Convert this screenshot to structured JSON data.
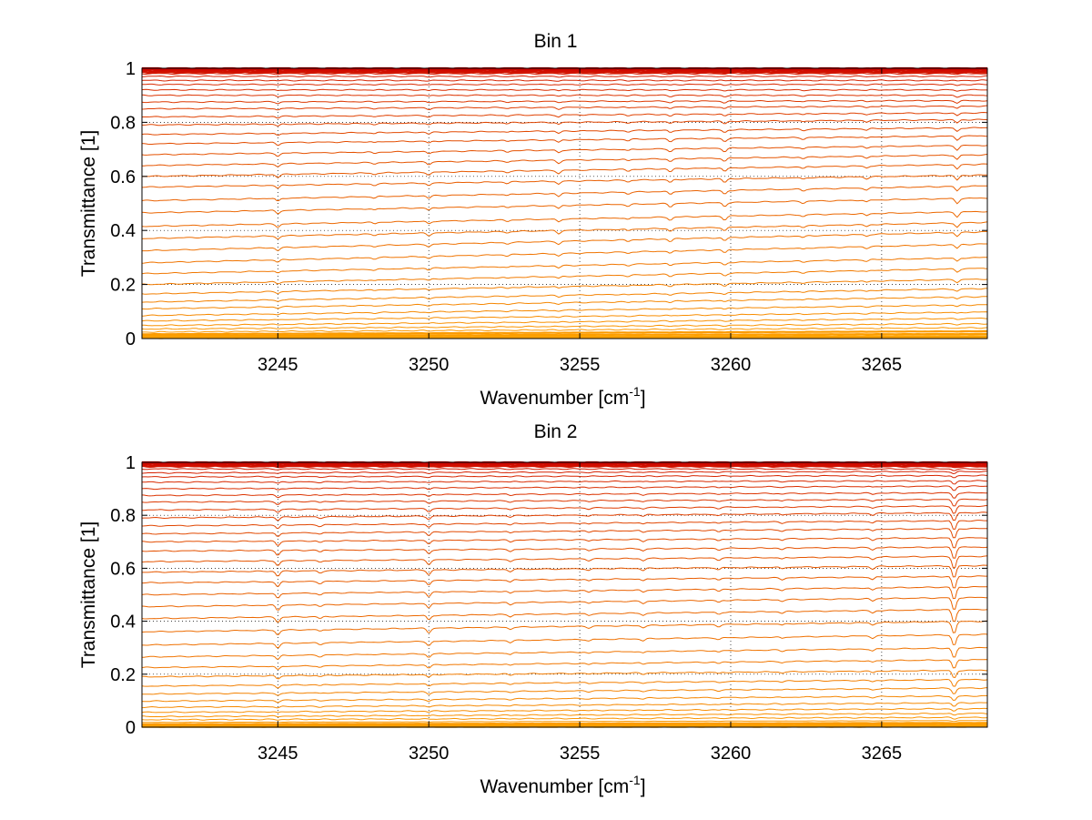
{
  "chart_data": [
    {
      "type": "line",
      "title": "Bin 1",
      "xlabel": "Wavenumber [cm",
      "xlabel_superscript": "-1",
      "xlabel_suffix": "]",
      "ylabel": "Transmittance [1]",
      "xlim": [
        3240.5,
        3268.5
      ],
      "ylim": [
        0,
        1
      ],
      "xticks": [
        3245,
        3250,
        3255,
        3260,
        3265
      ],
      "yticks": [
        0,
        0.2,
        0.4,
        0.6,
        0.8,
        1
      ],
      "ytick_labels": [
        "0",
        "0.2",
        "0.4",
        "0.6",
        "0.8",
        "1"
      ],
      "xtick_labels": [
        "3245",
        "3250",
        "3255",
        "3260",
        "3265"
      ],
      "grid": true,
      "series_count": 40,
      "series_color_range": [
        "#cc0000",
        "#ffa500"
      ],
      "series_start_levels": [
        1.0,
        0.995,
        0.99,
        0.985,
        0.98,
        0.97,
        0.955,
        0.94,
        0.92,
        0.9,
        0.875,
        0.85,
        0.82,
        0.79,
        0.755,
        0.72,
        0.68,
        0.64,
        0.6,
        0.56,
        0.51,
        0.465,
        0.415,
        0.37,
        0.325,
        0.28,
        0.24,
        0.2,
        0.165,
        0.135,
        0.11,
        0.085,
        0.065,
        0.048,
        0.035,
        0.024,
        0.016,
        0.01,
        0.005,
        0.002
      ],
      "series_end_levels": [
        1.0,
        0.995,
        0.99,
        0.985,
        0.98,
        0.97,
        0.955,
        0.94,
        0.92,
        0.9,
        0.88,
        0.86,
        0.835,
        0.81,
        0.78,
        0.75,
        0.715,
        0.68,
        0.645,
        0.605,
        0.565,
        0.52,
        0.47,
        0.43,
        0.395,
        0.35,
        0.3,
        0.26,
        0.22,
        0.185,
        0.155,
        0.125,
        0.098,
        0.075,
        0.055,
        0.04,
        0.027,
        0.017,
        0.009,
        0.004
      ],
      "absorption_lines": [
        3245.0,
        3248.2,
        3250.0,
        3252.6,
        3254.3,
        3256.6,
        3258.0,
        3259.8,
        3262.4,
        3264.5,
        3267.5
      ],
      "absorption_depths": [
        0.012,
        0.006,
        0.01,
        0.006,
        0.012,
        0.007,
        0.012,
        0.014,
        0.007,
        0.008,
        0.018
      ]
    },
    {
      "type": "line",
      "title": "Bin 2",
      "xlabel": "Wavenumber [cm",
      "xlabel_superscript": "-1",
      "xlabel_suffix": "]",
      "ylabel": "Transmittance [1]",
      "xlim": [
        3240.5,
        3268.5
      ],
      "ylim": [
        0,
        1
      ],
      "xticks": [
        3245,
        3250,
        3255,
        3260,
        3265
      ],
      "yticks": [
        0,
        0.2,
        0.4,
        0.6,
        0.8,
        1
      ],
      "ytick_labels": [
        "0",
        "0.2",
        "0.4",
        "0.6",
        "0.8",
        "1"
      ],
      "xtick_labels": [
        "3245",
        "3250",
        "3255",
        "3260",
        "3265"
      ],
      "grid": true,
      "series_count": 40,
      "series_color_range": [
        "#cc0000",
        "#ffa500"
      ],
      "series_start_levels": [
        1.0,
        0.995,
        0.99,
        0.985,
        0.975,
        0.96,
        0.945,
        0.925,
        0.9,
        0.875,
        0.85,
        0.82,
        0.79,
        0.76,
        0.73,
        0.7,
        0.665,
        0.625,
        0.585,
        0.545,
        0.5,
        0.455,
        0.41,
        0.36,
        0.31,
        0.265,
        0.225,
        0.19,
        0.155,
        0.125,
        0.098,
        0.075,
        0.056,
        0.04,
        0.028,
        0.018,
        0.011,
        0.006,
        0.003,
        0.001
      ],
      "series_end_levels": [
        1.0,
        0.995,
        0.99,
        0.985,
        0.975,
        0.965,
        0.95,
        0.93,
        0.91,
        0.885,
        0.86,
        0.835,
        0.81,
        0.78,
        0.75,
        0.715,
        0.68,
        0.645,
        0.61,
        0.57,
        0.53,
        0.49,
        0.445,
        0.4,
        0.35,
        0.3,
        0.255,
        0.215,
        0.18,
        0.148,
        0.118,
        0.092,
        0.07,
        0.052,
        0.037,
        0.025,
        0.016,
        0.009,
        0.005,
        0.002
      ],
      "absorption_lines": [
        3245.0,
        3246.4,
        3250.0,
        3252.7,
        3255.3,
        3257.1,
        3259.6,
        3261.7,
        3264.7,
        3267.4
      ],
      "absorption_depths": [
        0.02,
        0.008,
        0.018,
        0.009,
        0.007,
        0.009,
        0.008,
        0.007,
        0.01,
        0.05
      ]
    }
  ]
}
